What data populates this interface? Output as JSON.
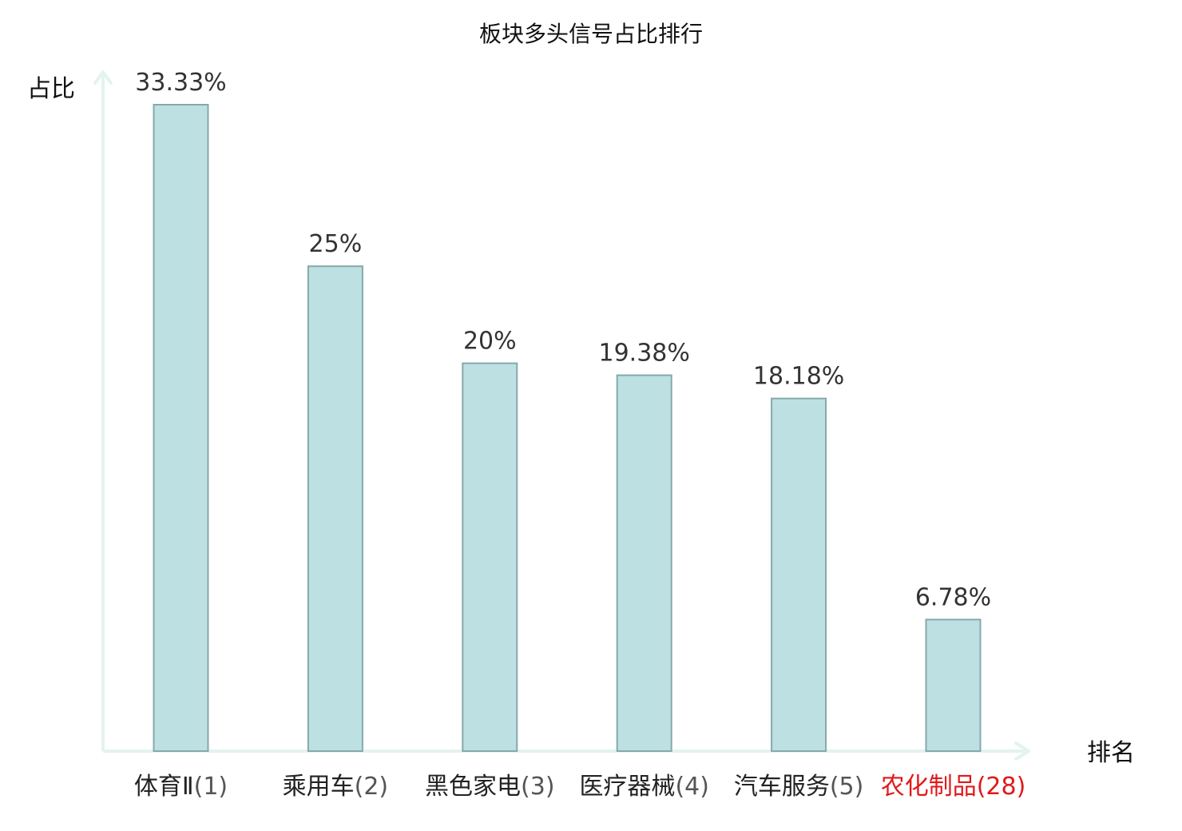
{
  "chart_data": {
    "type": "bar",
    "title": "板块多头信号占比排行",
    "xlabel": "排名",
    "ylabel": "占比",
    "categories": [
      {
        "name": "体育Ⅱ",
        "rank": "(1)",
        "highlight": false
      },
      {
        "name": "乘用车",
        "rank": "(2)",
        "highlight": false
      },
      {
        "name": "黑色家电",
        "rank": "(3)",
        "highlight": false
      },
      {
        "name": "医疗器械",
        "rank": "(4)",
        "highlight": false
      },
      {
        "name": "汽车服务",
        "rank": "(5)",
        "highlight": false
      },
      {
        "name": "农化制品",
        "rank": "(28)",
        "highlight": true
      }
    ],
    "values": [
      33.33,
      25,
      20,
      19.38,
      18.18,
      6.78
    ],
    "value_labels": [
      "33.33%",
      "25%",
      "20%",
      "19.38%",
      "18.18%",
      "6.78%"
    ],
    "ylim": [
      0,
      33.33
    ],
    "grid": false,
    "legend": "none",
    "colors": {
      "bar_fill": "#bde0e3",
      "bar_stroke": "#86a9ab",
      "axis": "#e3f3f0",
      "text": "#222222",
      "rank_text": "#555555",
      "highlight": "#e0191b"
    }
  }
}
